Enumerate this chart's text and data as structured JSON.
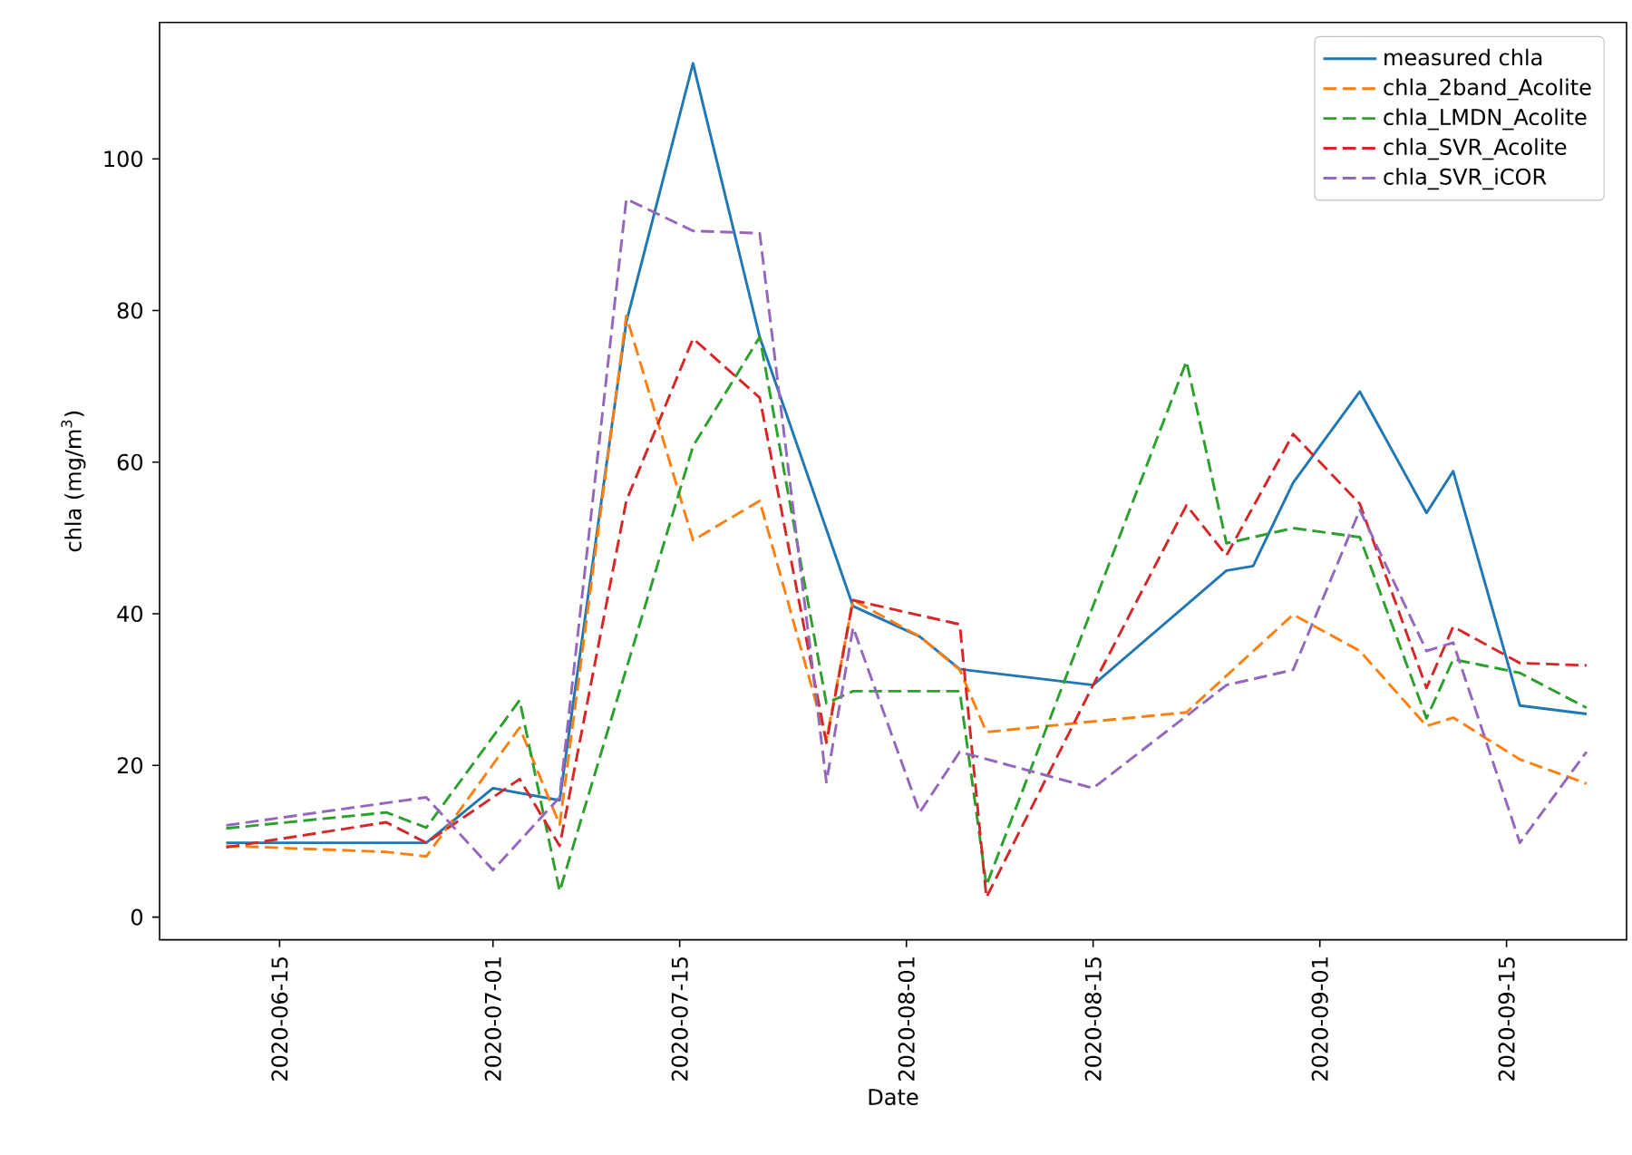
{
  "chart_data": {
    "type": "line",
    "xlabel": "Date",
    "ylabel": "chla (mg/m$^{3}$)",
    "xlim": [
      "2020-06-06",
      "2020-09-24"
    ],
    "ylim": [
      -3,
      118
    ],
    "xticks": [
      "2020-06-15",
      "2020-07-01",
      "2020-07-15",
      "2020-08-01",
      "2020-08-15",
      "2020-09-01",
      "2020-09-15"
    ],
    "yticks": [
      0,
      20,
      40,
      60,
      80,
      100
    ],
    "legend": "top right",
    "series": [
      {
        "name": "measured chla",
        "color": "#1f77b4",
        "line_style": "solid",
        "x": [
          "2020-06-11",
          "2020-06-26",
          "2020-07-01",
          "2020-07-06",
          "2020-07-11",
          "2020-07-16",
          "2020-07-21",
          "2020-07-28",
          "2020-08-02",
          "2020-08-05",
          "2020-08-15",
          "2020-08-25",
          "2020-08-27",
          "2020-08-30",
          "2020-09-04",
          "2020-09-09",
          "2020-09-11",
          "2020-09-16",
          "2020-09-21"
        ],
        "values": [
          9.8,
          9.8,
          17.0,
          15.4,
          78.5,
          112.6,
          76.5,
          41.0,
          37.0,
          32.7,
          30.6,
          45.7,
          46.3,
          57.3,
          69.3,
          53.3,
          58.8,
          27.9,
          26.8
        ]
      },
      {
        "name": "chla_2band_Acolite",
        "color": "#ff7f0e",
        "line_style": "dashed",
        "x": [
          "2020-06-11",
          "2020-06-23",
          "2020-06-26",
          "2020-07-03",
          "2020-07-06",
          "2020-07-11",
          "2020-07-16",
          "2020-07-21",
          "2020-07-26",
          "2020-07-28",
          "2020-08-02",
          "2020-08-05",
          "2020-08-07",
          "2020-08-15",
          "2020-08-22",
          "2020-08-30",
          "2020-09-04",
          "2020-09-09",
          "2020-09-11",
          "2020-09-16",
          "2020-09-21"
        ],
        "values": [
          9.4,
          8.6,
          8.0,
          25.0,
          12.2,
          79.3,
          49.7,
          54.9,
          23.4,
          41.8,
          37.0,
          32.6,
          24.4,
          25.8,
          27.0,
          39.9,
          35.1,
          25.2,
          26.3,
          20.8,
          17.6
        ]
      },
      {
        "name": "chla_LMDN_Acolite",
        "color": "#2ca02c",
        "line_style": "dashed",
        "x": [
          "2020-06-11",
          "2020-06-23",
          "2020-06-26",
          "2020-07-03",
          "2020-07-06",
          "2020-07-16",
          "2020-07-21",
          "2020-07-26",
          "2020-07-28",
          "2020-08-05",
          "2020-08-07",
          "2020-08-22",
          "2020-08-25",
          "2020-08-30",
          "2020-09-04",
          "2020-09-09",
          "2020-09-11",
          "2020-09-16",
          "2020-09-21"
        ],
        "values": [
          11.7,
          13.8,
          11.8,
          28.6,
          3.4,
          62.1,
          76.5,
          28.2,
          29.8,
          29.8,
          4.2,
          73.3,
          49.3,
          51.3,
          50.1,
          26.2,
          34.0,
          32.2,
          27.6
        ]
      },
      {
        "name": "chla_SVR_Acolite",
        "color": "#d62728",
        "line_style": "dashed",
        "x": [
          "2020-06-11",
          "2020-06-23",
          "2020-06-26",
          "2020-07-03",
          "2020-07-06",
          "2020-07-11",
          "2020-07-16",
          "2020-07-21",
          "2020-07-26",
          "2020-07-28",
          "2020-08-05",
          "2020-08-07",
          "2020-08-15",
          "2020-08-22",
          "2020-08-25",
          "2020-08-30",
          "2020-09-04",
          "2020-09-09",
          "2020-09-11",
          "2020-09-16",
          "2020-09-21"
        ],
        "values": [
          9.2,
          12.5,
          9.8,
          18.2,
          9.4,
          54.9,
          76.3,
          68.5,
          23.0,
          41.8,
          38.6,
          2.6,
          30.6,
          54.3,
          47.7,
          63.7,
          54.5,
          30.2,
          38.3,
          33.5,
          33.2
        ]
      },
      {
        "name": "chla_SVR_iCOR",
        "color": "#9467bd",
        "line_style": "dashed",
        "x": [
          "2020-06-11",
          "2020-06-26",
          "2020-07-01",
          "2020-07-06",
          "2020-07-11",
          "2020-07-16",
          "2020-07-21",
          "2020-07-26",
          "2020-07-28",
          "2020-08-02",
          "2020-08-05",
          "2020-08-15",
          "2020-08-25",
          "2020-08-30",
          "2020-09-04",
          "2020-09-09",
          "2020-09-11",
          "2020-09-16",
          "2020-09-21"
        ],
        "values": [
          12.1,
          15.8,
          6.2,
          15.8,
          94.7,
          90.5,
          90.2,
          17.8,
          38.2,
          13.8,
          21.8,
          17.0,
          30.6,
          32.6,
          53.7,
          35.1,
          36.2,
          9.8,
          21.8
        ]
      }
    ]
  }
}
